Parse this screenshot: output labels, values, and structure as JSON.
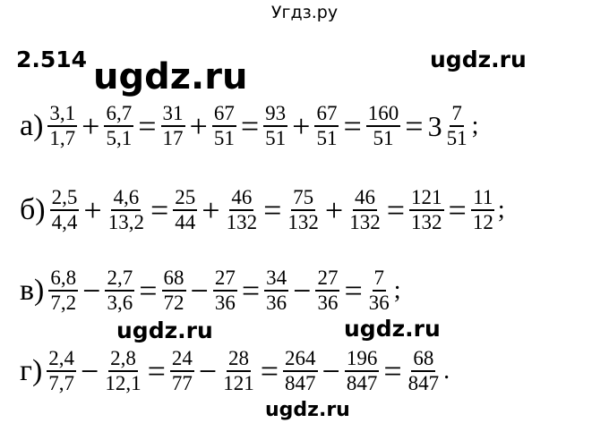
{
  "site_title": "Угдз.ру",
  "exercise_number": "2.514",
  "watermarks": [
    "ugdz.ru",
    "ugdz.ru",
    "ugdz.ru",
    "ugdz.ru",
    "ugdz.ru"
  ],
  "problems": [
    {
      "label": "а)",
      "tokens": [
        {
          "n": "3,1",
          "d": "1,7"
        },
        {
          "op": "+"
        },
        {
          "n": "6,7",
          "d": "5,1"
        },
        {
          "op": "="
        },
        {
          "n": "31",
          "d": "17"
        },
        {
          "op": "+"
        },
        {
          "n": "67",
          "d": "51"
        },
        {
          "op": "="
        },
        {
          "n": "93",
          "d": "51"
        },
        {
          "op": "+"
        },
        {
          "n": "67",
          "d": "51"
        },
        {
          "op": "="
        },
        {
          "n": "160",
          "d": "51"
        },
        {
          "op": "="
        },
        {
          "whole": "3"
        },
        {
          "n": "7",
          "d": "51"
        },
        {
          "tail": ";"
        }
      ]
    },
    {
      "label": "б)",
      "tokens": [
        {
          "n": "2,5",
          "d": "4,4"
        },
        {
          "op": "+"
        },
        {
          "n": "4,6",
          "d": "13,2"
        },
        {
          "op": "="
        },
        {
          "n": "25",
          "d": "44"
        },
        {
          "op": "+"
        },
        {
          "n": "46",
          "d": "132"
        },
        {
          "op": "="
        },
        {
          "n": "75",
          "d": "132"
        },
        {
          "op": "+"
        },
        {
          "n": "46",
          "d": "132"
        },
        {
          "op": "="
        },
        {
          "n": "121",
          "d": "132"
        },
        {
          "op": "="
        },
        {
          "n": "11",
          "d": "12"
        },
        {
          "tail": ";"
        }
      ]
    },
    {
      "label": "в)",
      "tokens": [
        {
          "n": "6,8",
          "d": "7,2"
        },
        {
          "op": "−"
        },
        {
          "n": "2,7",
          "d": "3,6"
        },
        {
          "op": "="
        },
        {
          "n": "68",
          "d": "72"
        },
        {
          "op": "−"
        },
        {
          "n": "27",
          "d": "36"
        },
        {
          "op": "="
        },
        {
          "n": "34",
          "d": "36"
        },
        {
          "op": "−"
        },
        {
          "n": "27",
          "d": "36"
        },
        {
          "op": "="
        },
        {
          "n": "7",
          "d": "36"
        },
        {
          "tail": ";"
        }
      ]
    },
    {
      "label": "г)",
      "tokens": [
        {
          "n": "2,4",
          "d": "7,7"
        },
        {
          "op": "−"
        },
        {
          "n": "2,8",
          "d": "12,1"
        },
        {
          "op": "="
        },
        {
          "n": "24",
          "d": "77"
        },
        {
          "op": "−"
        },
        {
          "n": "28",
          "d": "121"
        },
        {
          "op": "="
        },
        {
          "n": "264",
          "d": "847"
        },
        {
          "op": "−"
        },
        {
          "n": "196",
          "d": "847"
        },
        {
          "op": "="
        },
        {
          "n": "68",
          "d": "847"
        },
        {
          "tail": "."
        }
      ]
    }
  ]
}
